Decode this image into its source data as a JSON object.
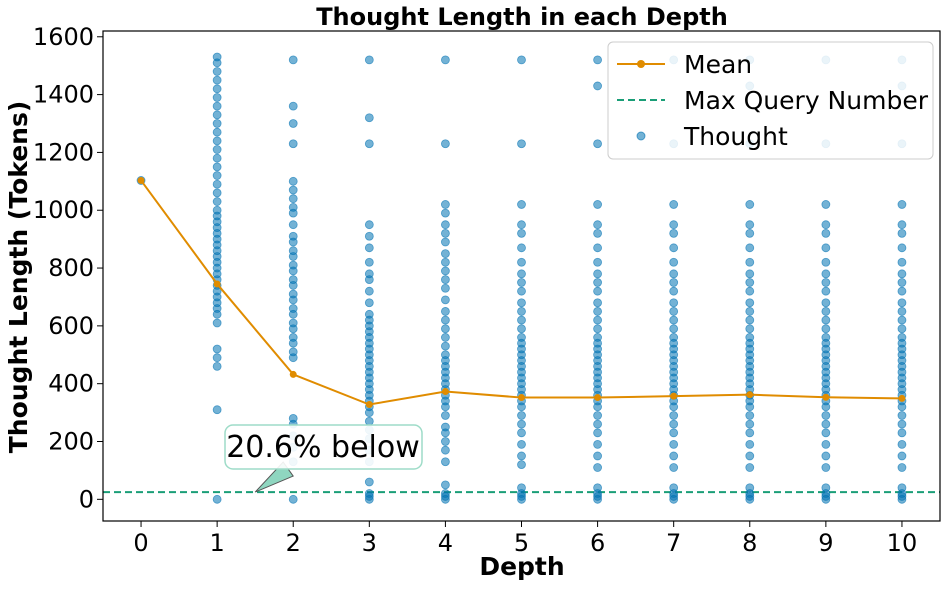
{
  "chart_data": {
    "type": "scatter",
    "title": "Thought Length in each Depth",
    "xlabel": "Depth",
    "ylabel": "Thought Length (Tokens)",
    "xlim": [
      -0.5,
      10.5
    ],
    "ylim": [
      -75,
      1620
    ],
    "x_ticks": [
      0,
      1,
      2,
      3,
      4,
      5,
      6,
      7,
      8,
      9,
      10
    ],
    "y_ticks": [
      0,
      200,
      400,
      600,
      800,
      1000,
      1200,
      1400,
      1600
    ],
    "grid": false,
    "legend": {
      "position": "top-right",
      "entries": [
        "Mean",
        "Max Query Number",
        "Thought"
      ]
    },
    "series": [
      {
        "name": "Mean",
        "kind": "line",
        "color": "#e08c00",
        "x": [
          0,
          1,
          2,
          3,
          4,
          5,
          6,
          7,
          8,
          9,
          10
        ],
        "y": [
          1103,
          745,
          432,
          328,
          373,
          352,
          352,
          357,
          362,
          353,
          349
        ]
      },
      {
        "name": "Max Query Number",
        "kind": "hline",
        "color": "#1a9e77",
        "y": 25
      },
      {
        "name": "Thought",
        "kind": "scatter",
        "color": "#0072b2",
        "points": [
          [
            0,
            [
              1103
            ]
          ],
          [
            1,
            [
              0,
              310,
              460,
              490,
              520,
              610,
              640,
              660,
              680,
              700,
              720,
              740,
              760,
              780,
              800,
              820,
              840,
              860,
              880,
              900,
              920,
              940,
              960,
              980,
              1000,
              1030,
              1060,
              1090,
              1120,
              1150,
              1180,
              1210,
              1240,
              1270,
              1300,
              1330,
              1360,
              1390,
              1420,
              1450,
              1480,
              1510,
              1530
            ]
          ],
          [
            2,
            [
              0,
              130,
              180,
              220,
              260,
              280,
              490,
              510,
              540,
              560,
              590,
              610,
              640,
              660,
              690,
              710,
              740,
              760,
              790,
              810,
              840,
              860,
              890,
              910,
              950,
              990,
              1010,
              1040,
              1070,
              1100,
              1230,
              1300,
              1360,
              1520
            ]
          ],
          [
            3,
            [
              0,
              10,
              20,
              60,
              130,
              170,
              210,
              240,
              270,
              300,
              320,
              340,
              360,
              380,
              400,
              420,
              440,
              460,
              480,
              500,
              520,
              540,
              560,
              580,
              600,
              620,
              640,
              680,
              720,
              760,
              780,
              820,
              870,
              910,
              950,
              1230,
              1320,
              1520
            ]
          ],
          [
            4,
            [
              0,
              10,
              20,
              50,
              130,
              170,
              200,
              230,
              250,
              290,
              320,
              340,
              360,
              380,
              400,
              420,
              440,
              460,
              480,
              500,
              530,
              560,
              590,
              620,
              650,
              690,
              730,
              760,
              790,
              820,
              850,
              890,
              920,
              950,
              990,
              1020,
              1230,
              1520
            ]
          ],
          [
            5,
            [
              0,
              10,
              20,
              40,
              120,
              150,
              190,
              230,
              260,
              290,
              320,
              340,
              360,
              380,
              400,
              420,
              440,
              460,
              480,
              500,
              520,
              540,
              560,
              590,
              620,
              650,
              680,
              720,
              750,
              780,
              820,
              870,
              920,
              950,
              1020,
              1230,
              1520
            ]
          ],
          [
            6,
            [
              0,
              10,
              20,
              40,
              110,
              150,
              190,
              230,
              260,
              290,
              320,
              340,
              360,
              380,
              400,
              420,
              440,
              460,
              480,
              500,
              520,
              540,
              560,
              590,
              620,
              650,
              680,
              720,
              750,
              780,
              820,
              870,
              920,
              950,
              1020,
              1230,
              1430,
              1520
            ]
          ],
          [
            7,
            [
              0,
              10,
              20,
              40,
              110,
              150,
              190,
              230,
              260,
              290,
              320,
              340,
              360,
              380,
              400,
              420,
              440,
              460,
              480,
              500,
              520,
              540,
              560,
              590,
              620,
              650,
              680,
              720,
              750,
              780,
              820,
              870,
              920,
              950,
              1020,
              1230,
              1520
            ]
          ],
          [
            8,
            [
              0,
              10,
              20,
              40,
              110,
              150,
              190,
              230,
              260,
              290,
              320,
              340,
              360,
              380,
              400,
              420,
              440,
              460,
              480,
              500,
              520,
              540,
              560,
              590,
              620,
              650,
              680,
              720,
              750,
              780,
              820,
              870,
              920,
              950,
              1020,
              1230,
              1430,
              1520
            ]
          ],
          [
            9,
            [
              0,
              10,
              20,
              40,
              110,
              150,
              190,
              230,
              260,
              290,
              320,
              340,
              360,
              380,
              400,
              420,
              440,
              460,
              480,
              500,
              520,
              540,
              560,
              590,
              620,
              650,
              680,
              720,
              750,
              780,
              820,
              870,
              920,
              950,
              1020,
              1230,
              1520
            ]
          ],
          [
            10,
            [
              0,
              10,
              20,
              40,
              110,
              150,
              190,
              230,
              260,
              290,
              320,
              340,
              360,
              380,
              400,
              420,
              440,
              460,
              480,
              500,
              520,
              540,
              560,
              590,
              620,
              650,
              680,
              720,
              750,
              780,
              820,
              870,
              920,
              950,
              1020,
              1230,
              1430,
              1520
            ]
          ]
        ]
      }
    ],
    "annotations": [
      {
        "text": "20.6% below",
        "x": 1.5,
        "y": 25,
        "fill": "#8fd6c0",
        "border": "#9edcc8"
      }
    ]
  }
}
